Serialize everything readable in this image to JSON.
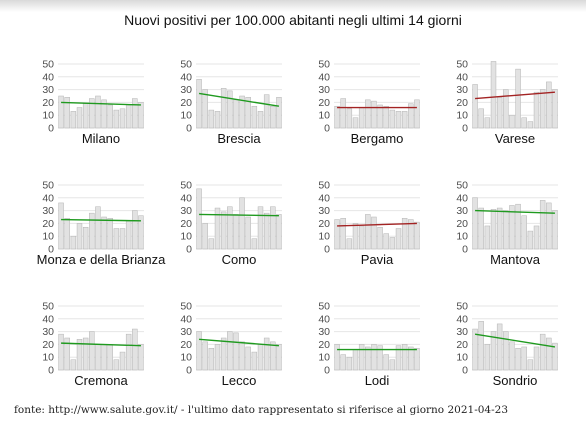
{
  "title": "Nuovi positivi per 100.000 abitanti negli ultimi 14 giorni",
  "source_note": "fonte: http://www.salute.gov.it/ - l'ultimo dato rappresentato si riferisce al giorno 2021-04-23",
  "colors": {
    "bar_fill": "#e2e2e2",
    "bar_stroke": "#b3b3b3",
    "grid": "#e6e6e6",
    "trend_down": "#1f9a1f",
    "trend_up": "#a32323"
  },
  "chart_data": [
    {
      "type": "bar",
      "title": "Milano",
      "ylim": [
        0,
        50
      ],
      "yticks": [
        0,
        10,
        20,
        30,
        40,
        50
      ],
      "values": [
        25,
        24,
        13,
        16,
        19,
        23,
        25,
        22,
        18,
        14,
        15,
        18,
        23,
        20
      ],
      "trend": {
        "start": 20,
        "end": 18,
        "direction": "down"
      }
    },
    {
      "type": "bar",
      "title": "Brescia",
      "ylim": [
        0,
        50
      ],
      "yticks": [
        0,
        10,
        20,
        30,
        40,
        50
      ],
      "values": [
        38,
        30,
        14,
        13,
        31,
        29,
        22,
        25,
        24,
        17,
        13,
        26,
        17,
        24
      ],
      "trend": {
        "start": 27,
        "end": 17,
        "direction": "down"
      }
    },
    {
      "type": "bar",
      "title": "Bergamo",
      "ylim": [
        0,
        50
      ],
      "yticks": [
        0,
        10,
        20,
        30,
        40,
        50
      ],
      "values": [
        17,
        23,
        15,
        8,
        16,
        22,
        21,
        18,
        17,
        14,
        13,
        13,
        19,
        22
      ],
      "trend": {
        "start": 16,
        "end": 16,
        "direction": "up"
      }
    },
    {
      "type": "bar",
      "title": "Varese",
      "ylim": [
        0,
        50
      ],
      "yticks": [
        0,
        10,
        20,
        30,
        40,
        50
      ],
      "values": [
        34,
        15,
        8,
        52,
        24,
        30,
        10,
        46,
        8,
        5,
        28,
        30,
        36,
        30
      ],
      "trend": {
        "start": 23,
        "end": 28,
        "direction": "up"
      }
    },
    {
      "type": "bar",
      "title": "Monza e della Brianza",
      "ylim": [
        0,
        50
      ],
      "yticks": [
        0,
        10,
        20,
        30,
        40,
        50
      ],
      "values": [
        36,
        24,
        10,
        20,
        17,
        28,
        33,
        25,
        24,
        16,
        16,
        22,
        30,
        26
      ],
      "trend": {
        "start": 23,
        "end": 22,
        "direction": "down"
      }
    },
    {
      "type": "bar",
      "title": "Como",
      "ylim": [
        0,
        50
      ],
      "yticks": [
        0,
        10,
        20,
        30,
        40,
        50
      ],
      "values": [
        47,
        20,
        8,
        32,
        29,
        33,
        27,
        40,
        25,
        8,
        33,
        28,
        33,
        27
      ],
      "trend": {
        "start": 27,
        "end": 26,
        "direction": "down"
      }
    },
    {
      "type": "bar",
      "title": "Pavia",
      "ylim": [
        0,
        50
      ],
      "yticks": [
        0,
        10,
        20,
        30,
        40,
        50
      ],
      "values": [
        23,
        24,
        8,
        20,
        18,
        27,
        25,
        17,
        12,
        9,
        16,
        24,
        23,
        21
      ],
      "trend": {
        "start": 18,
        "end": 20,
        "direction": "up"
      }
    },
    {
      "type": "bar",
      "title": "Mantova",
      "ylim": [
        0,
        50
      ],
      "yticks": [
        0,
        10,
        20,
        30,
        40,
        50
      ],
      "values": [
        40,
        32,
        18,
        31,
        32,
        30,
        34,
        35,
        26,
        14,
        18,
        38,
        36,
        30
      ],
      "trend": {
        "start": 30,
        "end": 28,
        "direction": "down"
      }
    },
    {
      "type": "bar",
      "title": "Cremona",
      "ylim": [
        0,
        50
      ],
      "yticks": [
        0,
        10,
        20,
        30,
        40,
        50
      ],
      "values": [
        28,
        25,
        8,
        24,
        25,
        30,
        20,
        20,
        20,
        8,
        14,
        28,
        32,
        20
      ],
      "trend": {
        "start": 21,
        "end": 19,
        "direction": "down"
      }
    },
    {
      "type": "bar",
      "title": "Lecco",
      "ylim": [
        0,
        50
      ],
      "yticks": [
        0,
        10,
        20,
        30,
        40,
        50
      ],
      "values": [
        30,
        22,
        17,
        20,
        25,
        30,
        29,
        22,
        18,
        14,
        20,
        25,
        22,
        20
      ],
      "trend": {
        "start": 24,
        "end": 19,
        "direction": "down"
      }
    },
    {
      "type": "bar",
      "title": "Lodi",
      "ylim": [
        0,
        50
      ],
      "yticks": [
        0,
        10,
        20,
        30,
        40,
        50
      ],
      "values": [
        20,
        12,
        10,
        16,
        20,
        18,
        20,
        19,
        12,
        8,
        19,
        20,
        18,
        17
      ],
      "trend": {
        "start": 16,
        "end": 16,
        "direction": "down"
      }
    },
    {
      "type": "bar",
      "title": "Sondrio",
      "ylim": [
        0,
        50
      ],
      "yticks": [
        0,
        10,
        20,
        30,
        40,
        50
      ],
      "values": [
        32,
        38,
        20,
        30,
        36,
        30,
        22,
        17,
        18,
        8,
        18,
        28,
        25,
        21
      ],
      "trend": {
        "start": 28,
        "end": 18,
        "direction": "down"
      }
    }
  ]
}
